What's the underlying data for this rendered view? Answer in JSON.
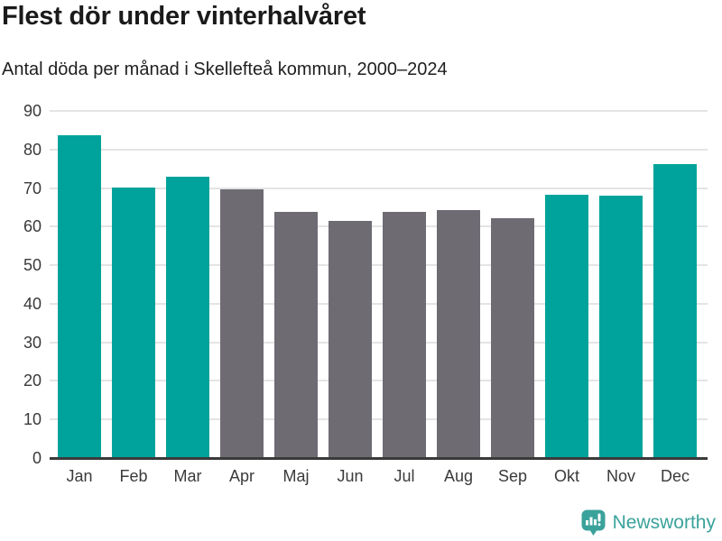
{
  "header": {
    "title": "Flest dör under vinterhalvåret",
    "subtitle": "Antal döda per månad i Skellefteå kommun, 2000–2024"
  },
  "chart_data": {
    "type": "bar",
    "title": "Flest dör under vinterhalvåret",
    "subtitle": "Antal döda per månad i Skellefteå kommun, 2000–2024",
    "categories": [
      "Jan",
      "Feb",
      "Mar",
      "Apr",
      "Maj",
      "Jun",
      "Jul",
      "Aug",
      "Sep",
      "Okt",
      "Nov",
      "Dec"
    ],
    "values": [
      83.7,
      70.1,
      73.0,
      69.7,
      63.8,
      61.5,
      63.8,
      64.2,
      62.3,
      68.2,
      68.0,
      76.1
    ],
    "bar_groups": [
      "winter",
      "winter",
      "winter",
      "summer",
      "summer",
      "summer",
      "summer",
      "summer",
      "summer",
      "winter",
      "winter",
      "winter"
    ],
    "colors": {
      "winter": "#00a39b",
      "summer": "#6e6b73"
    },
    "xlabel": "",
    "ylabel": "",
    "ylim": [
      0,
      90
    ],
    "yticks": [
      0,
      10,
      20,
      30,
      40,
      50,
      60,
      70,
      80,
      90
    ],
    "grid": "horizontal-only",
    "legend": "none"
  },
  "branding": {
    "label": "Newsworthy",
    "color": "#3aa29b",
    "icon": "newsworthy-speech-bubble-chart-icon"
  }
}
